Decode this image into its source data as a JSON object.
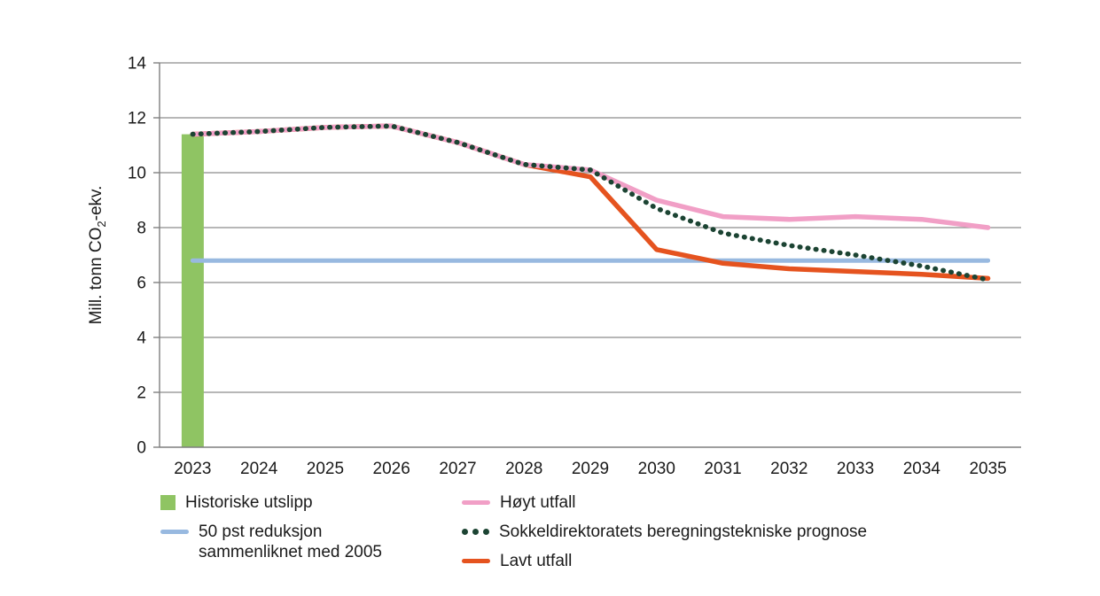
{
  "chart_data": {
    "type": "line",
    "ylabel": "Mill. tonn CO2-ekv.",
    "ylabel_prefix": "Mill. tonn CO",
    "ylabel_sub": "2",
    "ylabel_suffix": "-ekv.",
    "categories": [
      "2023",
      "2024",
      "2025",
      "2026",
      "2027",
      "2028",
      "2029",
      "2030",
      "2031",
      "2032",
      "2033",
      "2034",
      "2035"
    ],
    "ylim": [
      0,
      14
    ],
    "yticks": [
      0,
      2,
      4,
      6,
      8,
      10,
      12,
      14
    ],
    "grid": true,
    "legend_position": "bottom",
    "axis_color": "#7F7F7F",
    "grid_color": "#8C8C8C",
    "text_color": "#1A1A1A",
    "bar_series": {
      "name": "Historiske utslipp",
      "color": "#8FC463",
      "category": "2023",
      "value": 11.4
    },
    "reference_line": {
      "name": "50 pst reduksjon sammenliknet med 2005",
      "color": "#98B9E0",
      "value": 6.8,
      "from": "2023",
      "to": "2035"
    },
    "series": [
      {
        "name": "Lavt utfall",
        "color": "#E5531F",
        "style": "solid",
        "values": [
          11.4,
          11.5,
          11.65,
          11.7,
          11.1,
          10.3,
          9.85,
          7.2,
          6.7,
          6.5,
          6.4,
          6.3,
          6.15
        ]
      },
      {
        "name": "Høyt utfall",
        "color": "#F19FC6",
        "style": "solid",
        "values": [
          11.4,
          11.5,
          11.65,
          11.7,
          11.1,
          10.3,
          10.1,
          9.0,
          8.4,
          8.3,
          8.4,
          8.3,
          8.0
        ]
      },
      {
        "name": "Sokkeldirektoratets beregningstekniske prognose",
        "color": "#1C4433",
        "style": "dotted",
        "values": [
          11.4,
          11.5,
          11.65,
          11.7,
          11.1,
          10.3,
          10.1,
          8.7,
          7.8,
          7.35,
          7.0,
          6.6,
          6.1
        ]
      }
    ]
  },
  "legend": {
    "items": [
      {
        "label": "Historiske utslipp",
        "marker": "square",
        "color": "#8FC463"
      },
      {
        "label": "50 pst reduksjon sammenliknet med 2005",
        "marker": "line",
        "color": "#98B9E0"
      },
      {
        "label": "Høyt utfall",
        "marker": "line",
        "color": "#F19FC6"
      },
      {
        "label": "Sokkeldirektoratets beregningstekniske prognose",
        "marker": "dotted-line",
        "color": "#1C4433"
      },
      {
        "label": "Lavt utfall",
        "marker": "line",
        "color": "#E5531F"
      }
    ]
  }
}
